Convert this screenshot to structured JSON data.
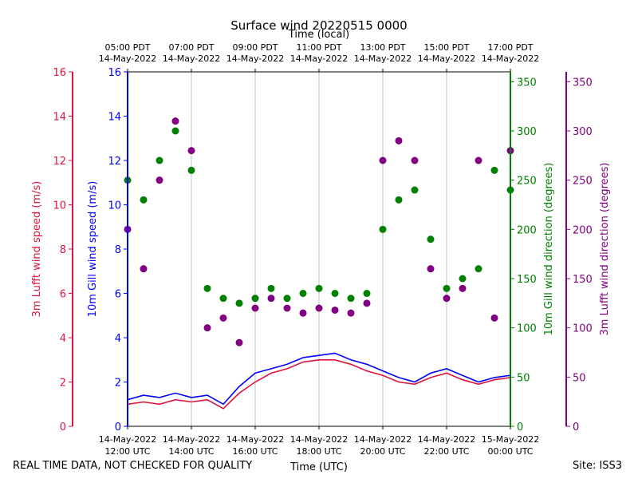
{
  "chart_data": {
    "type": "scatter",
    "title": "Surface wind 20220515 0000",
    "top_axis_label": "Time (local)",
    "bottom_axis_label": "Time (UTC)",
    "x_range_utc_hours": [
      12,
      24
    ],
    "bottom_ticks": [
      {
        "hour": 12,
        "date": "14-May-2022",
        "time": "12:00 UTC"
      },
      {
        "hour": 14,
        "date": "14-May-2022",
        "time": "14:00 UTC"
      },
      {
        "hour": 16,
        "date": "14-May-2022",
        "time": "16:00 UTC"
      },
      {
        "hour": 18,
        "date": "14-May-2022",
        "time": "18:00 UTC"
      },
      {
        "hour": 20,
        "date": "14-May-2022",
        "time": "20:00 UTC"
      },
      {
        "hour": 22,
        "date": "14-May-2022",
        "time": "22:00 UTC"
      },
      {
        "hour": 24,
        "date": "15-May-2022",
        "time": "00:00 UTC"
      }
    ],
    "top_ticks": [
      {
        "hour": 12,
        "time": "05:00 PDT",
        "date": "14-May-2022"
      },
      {
        "hour": 14,
        "time": "07:00 PDT",
        "date": "14-May-2022"
      },
      {
        "hour": 16,
        "time": "09:00 PDT",
        "date": "14-May-2022"
      },
      {
        "hour": 18,
        "time": "11:00 PDT",
        "date": "14-May-2022"
      },
      {
        "hour": 20,
        "time": "13:00 PDT",
        "date": "14-May-2022"
      },
      {
        "hour": 22,
        "time": "15:00 PDT",
        "date": "14-May-2022"
      },
      {
        "hour": 24,
        "time": "17:00 PDT",
        "date": "14-May-2022"
      }
    ],
    "axes": {
      "lufft_speed": {
        "label": "3m Lufft wind speed (m/s)",
        "color": "#dc143c",
        "range": [
          0,
          16
        ],
        "ticks": [
          0,
          2,
          4,
          6,
          8,
          10,
          12,
          14,
          16
        ],
        "side": "left-outer"
      },
      "gill_speed": {
        "label": "10m Gill wind speed (m/s)",
        "color": "#0000ff",
        "range": [
          0,
          16
        ],
        "ticks": [
          0,
          2,
          4,
          6,
          8,
          10,
          12,
          14,
          16
        ],
        "side": "left-inner"
      },
      "gill_direction": {
        "label": "10m Gill wind direction (degrees)",
        "color": "#008000",
        "range": [
          0,
          360
        ],
        "ticks": [
          0,
          50,
          100,
          150,
          200,
          250,
          300,
          350
        ],
        "side": "right-inner"
      },
      "lufft_direction": {
        "label": "3m Lufft wind direction (degrees)",
        "color": "#800080",
        "range": [
          0,
          360
        ],
        "ticks": [
          0,
          50,
          100,
          150,
          200,
          250,
          300,
          350
        ],
        "side": "right-outer"
      }
    },
    "series": [
      {
        "name": "10m Gill wind speed",
        "kind": "line",
        "axis": "gill_speed",
        "color": "#0000ff",
        "x": [
          12.0,
          12.5,
          13.0,
          13.5,
          14.0,
          14.5,
          15.0,
          15.5,
          16.0,
          16.5,
          17.0,
          17.5,
          18.0,
          18.5,
          19.0,
          19.5,
          20.0,
          20.5,
          21.0,
          21.5,
          22.0,
          22.5,
          23.0,
          23.5,
          24.0
        ],
        "y": [
          1.2,
          1.4,
          1.3,
          1.5,
          1.3,
          1.4,
          1.0,
          1.8,
          2.4,
          2.6,
          2.8,
          3.1,
          3.2,
          3.3,
          3.0,
          2.8,
          2.5,
          2.2,
          2.0,
          2.4,
          2.6,
          2.3,
          2.0,
          2.2,
          2.3
        ]
      },
      {
        "name": "3m Lufft wind speed",
        "kind": "line",
        "axis": "lufft_speed",
        "color": "#dc143c",
        "x": [
          12.0,
          12.5,
          13.0,
          13.5,
          14.0,
          14.5,
          15.0,
          15.5,
          16.0,
          16.5,
          17.0,
          17.5,
          18.0,
          18.5,
          19.0,
          19.5,
          20.0,
          20.5,
          21.0,
          21.5,
          22.0,
          22.5,
          23.0,
          23.5,
          24.0
        ],
        "y": [
          1.0,
          1.1,
          1.0,
          1.2,
          1.1,
          1.2,
          0.8,
          1.5,
          2.0,
          2.4,
          2.6,
          2.9,
          3.0,
          3.0,
          2.8,
          2.5,
          2.3,
          2.0,
          1.9,
          2.2,
          2.4,
          2.1,
          1.9,
          2.1,
          2.2
        ]
      },
      {
        "name": "10m Gill wind direction",
        "kind": "scatter",
        "axis": "gill_direction",
        "color": "#008000",
        "x": [
          12.0,
          12.5,
          13.0,
          13.5,
          14.0,
          14.5,
          15.0,
          15.5,
          16.0,
          16.5,
          17.0,
          17.5,
          18.0,
          18.5,
          19.0,
          19.5,
          20.0,
          20.5,
          21.0,
          21.5,
          22.0,
          22.5,
          23.0,
          23.5,
          24.0
        ],
        "y": [
          250,
          230,
          270,
          300,
          260,
          140,
          130,
          125,
          130,
          140,
          130,
          135,
          140,
          135,
          130,
          135,
          200,
          230,
          240,
          190,
          140,
          150,
          160,
          260,
          240
        ]
      },
      {
        "name": "3m Lufft wind direction",
        "kind": "scatter",
        "axis": "lufft_direction",
        "color": "#800080",
        "x": [
          12.0,
          12.5,
          13.0,
          13.5,
          14.0,
          14.5,
          15.0,
          15.5,
          16.0,
          16.5,
          17.0,
          17.5,
          18.0,
          18.5,
          19.0,
          19.5,
          20.0,
          20.5,
          21.0,
          21.5,
          22.0,
          22.5,
          23.0,
          23.5,
          24.0
        ],
        "y": [
          200,
          160,
          250,
          310,
          280,
          100,
          110,
          85,
          120,
          130,
          120,
          115,
          120,
          118,
          115,
          125,
          270,
          290,
          270,
          160,
          130,
          140,
          270,
          110,
          280
        ]
      }
    ]
  },
  "footer": {
    "disclaimer": "REAL TIME DATA, NOT CHECKED FOR QUALITY",
    "site": "Site: ISS3"
  }
}
